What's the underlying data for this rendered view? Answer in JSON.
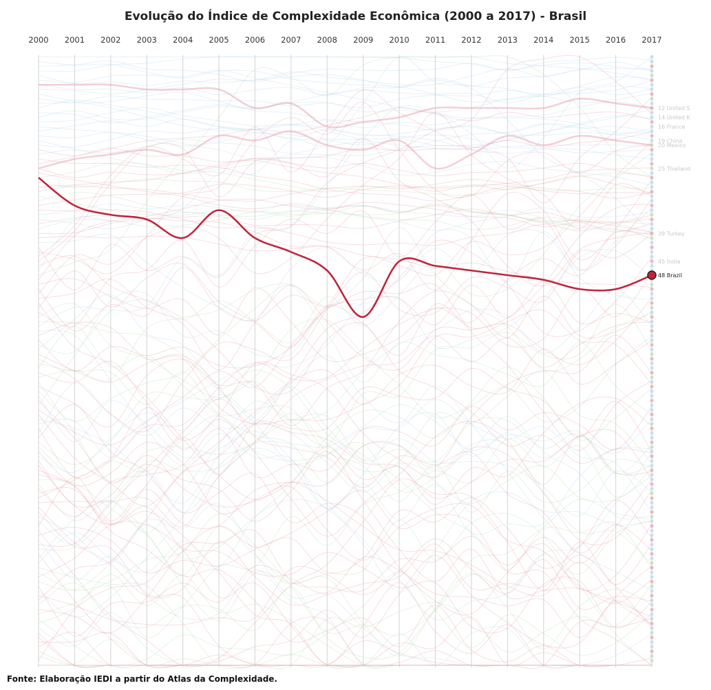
{
  "chart_data": {
    "type": "line",
    "subtype": "bump",
    "title": "Evolução do Índice de Complexidade Econômica (2000 a 2017) - Brasil",
    "source": "Fonte: Elaboração IEDI a partir do Atlas da Complexidade.",
    "x": [
      "2000",
      "2001",
      "2002",
      "2003",
      "2004",
      "2005",
      "2006",
      "2007",
      "2008",
      "2009",
      "2010",
      "2011",
      "2012",
      "2013",
      "2014",
      "2015",
      "2016",
      "2017"
    ],
    "y_axis": "rank (1 = top)",
    "ylim": [
      1,
      133
    ],
    "highlight": {
      "name": "Brazil",
      "label": "48  Brazil",
      "color": "#c0243c",
      "values": [
        27,
        33,
        35,
        36,
        40,
        34,
        40,
        43,
        47,
        57,
        45,
        46,
        47,
        48,
        49,
        51,
        51,
        48
      ]
    },
    "series": [
      {
        "name": "United States",
        "label": "12  United S",
        "color": "#e8a0ad",
        "values": [
          7,
          7,
          7,
          8,
          8,
          8,
          12,
          11,
          16,
          15,
          14,
          12,
          12,
          12,
          12,
          10,
          11,
          12
        ]
      },
      {
        "name": "Mexico",
        "label": "20  Mexico",
        "color": "#e8a0ad",
        "values": [
          25,
          23,
          22,
          21,
          22,
          18,
          19,
          17,
          20,
          21,
          19,
          25,
          22,
          18,
          20,
          18,
          19,
          20
        ]
      },
      {
        "name": "United Kingdom",
        "label": "14  United K",
        "color": "#b8d6ec",
        "values": null,
        "final_rank": 14
      },
      {
        "name": "France",
        "label": "16  France",
        "color": "#b8d6ec",
        "values": null,
        "final_rank": 16
      },
      {
        "name": "China",
        "label": "19  China",
        "color": "#b9dcb0",
        "values": null,
        "final_rank": 19
      },
      {
        "name": "Thailand",
        "label": "25  Thailand",
        "color": "#b9dcb0",
        "values": null,
        "final_rank": 25
      },
      {
        "name": "Turkey",
        "label": "39  Turkey",
        "color": "#b9dcb0",
        "values": null,
        "final_rank": 39
      },
      {
        "name": "India",
        "label": "45  India",
        "color": "#b9dcb0",
        "values": null,
        "final_rank": 45
      }
    ],
    "background_count": 133,
    "colors": {
      "pink": "#e8a0ad",
      "green": "#b9dcb0",
      "blue": "#b8d6ec",
      "grid": "#d9d9d9"
    }
  }
}
